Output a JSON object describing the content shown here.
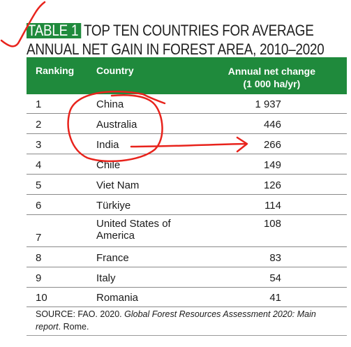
{
  "title": {
    "badge": "TABLE 1",
    "line1_rest": "TOP TEN COUNTRIES FOR AVERAGE",
    "line2": "ANNUAL NET GAIN IN FOREST AREA, 2010–2020"
  },
  "table": {
    "headers": {
      "ranking": "Ranking",
      "country": "Country",
      "change_line1": "Annual net change",
      "change_line2": "(1 000 ha/yr)"
    },
    "rows": [
      {
        "rank": "1",
        "country": "China",
        "value": "1 937"
      },
      {
        "rank": "2",
        "country": "Australia",
        "value": "446"
      },
      {
        "rank": "3",
        "country": "India",
        "value": "266"
      },
      {
        "rank": "4",
        "country": "Chile",
        "value": "149"
      },
      {
        "rank": "5",
        "country": "Viet Nam",
        "value": "126"
      },
      {
        "rank": "6",
        "country": "Türkiye",
        "value": "114"
      },
      {
        "rank": "7",
        "country": "United States of America",
        "value": "108"
      },
      {
        "rank": "8",
        "country": "France",
        "value": "83"
      },
      {
        "rank": "9",
        "country": "Italy",
        "value": "54"
      },
      {
        "rank": "10",
        "country": "Romania",
        "value": "41"
      }
    ]
  },
  "source": {
    "prefix": "SOURCE: FAO. 2020. ",
    "title_italic": "Global Forest Resources Assessment 2020: Main report",
    "suffix": ". Rome."
  },
  "colors": {
    "header_green": "#1f8a3c",
    "annotation_red": "#e8231c"
  }
}
